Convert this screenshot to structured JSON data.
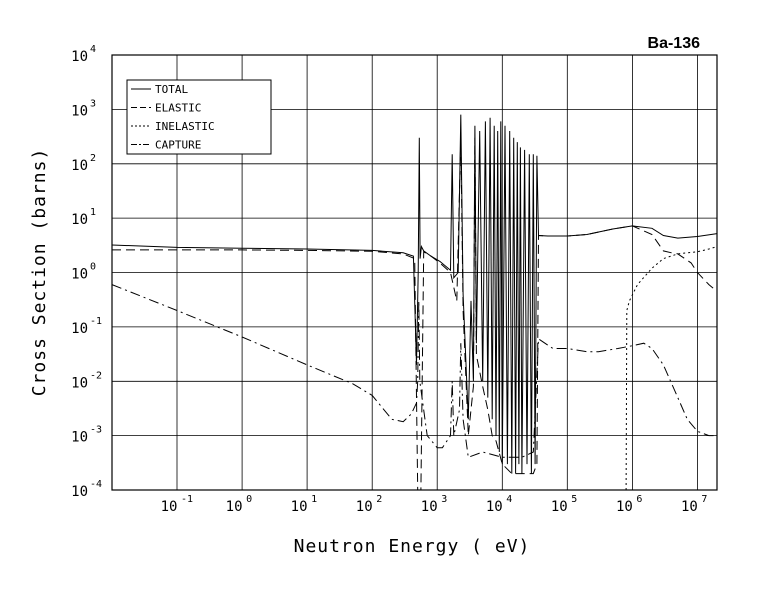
{
  "chart_data": {
    "type": "line",
    "title": "Ba-136",
    "xlabel": "Neutron Energy ( eV)",
    "ylabel": "Cross Section (barns)",
    "x_scale": "log",
    "y_scale": "log",
    "xlim": [
      0.01,
      20000000
    ],
    "ylim": [
      0.0001,
      10000
    ],
    "x_ticks": [
      0.1,
      1,
      10,
      100,
      1000,
      10000,
      100000,
      1000000,
      10000000
    ],
    "x_tick_labels": [
      {
        "base": "10",
        "exp": "-1"
      },
      {
        "base": "10",
        "exp": "0"
      },
      {
        "base": "10",
        "exp": "1"
      },
      {
        "base": "10",
        "exp": "2"
      },
      {
        "base": "10",
        "exp": "3"
      },
      {
        "base": "10",
        "exp": "4"
      },
      {
        "base": "10",
        "exp": "5"
      },
      {
        "base": "10",
        "exp": "6"
      },
      {
        "base": "10",
        "exp": "7"
      }
    ],
    "y_ticks": [
      0.0001,
      0.001,
      0.01,
      0.1,
      1,
      10,
      100,
      1000,
      10000
    ],
    "y_tick_labels": [
      {
        "base": "10",
        "exp": "-4"
      },
      {
        "base": "10",
        "exp": "-3"
      },
      {
        "base": "10",
        "exp": "-2"
      },
      {
        "base": "10",
        "exp": "-1"
      },
      {
        "base": "10",
        "exp": "0"
      },
      {
        "base": "10",
        "exp": "1"
      },
      {
        "base": "10",
        "exp": "2"
      },
      {
        "base": "10",
        "exp": "3"
      },
      {
        "base": "10",
        "exp": "4"
      }
    ],
    "grid": true,
    "legend_position": "top-left",
    "series": [
      {
        "name": "TOTAL",
        "dash": "solid",
        "points": [
          [
            0.01,
            3.2
          ],
          [
            0.1,
            2.9
          ],
          [
            1,
            2.8
          ],
          [
            10,
            2.7
          ],
          [
            100,
            2.55
          ],
          [
            300,
            2.3
          ],
          [
            430,
            2.0
          ],
          [
            480,
            0.02
          ],
          [
            510,
            1.0
          ],
          [
            530,
            300
          ],
          [
            545,
            1.8
          ],
          [
            570,
            3.0
          ],
          [
            620,
            2.5
          ],
          [
            800,
            2.0
          ],
          [
            1100,
            1.6
          ],
          [
            1600,
            1.1
          ],
          [
            1700,
            150
          ],
          [
            1800,
            0.8
          ],
          [
            2100,
            1.0
          ],
          [
            2300,
            800
          ],
          [
            2500,
            0.4
          ],
          [
            3000,
            0.002
          ],
          [
            3300,
            0.3
          ],
          [
            3600,
            0.01
          ],
          [
            3800,
            500
          ],
          [
            4000,
            0.05
          ],
          [
            4500,
            400
          ],
          [
            5000,
            0.01
          ],
          [
            5500,
            600
          ],
          [
            6000,
            0.005
          ],
          [
            6500,
            700
          ],
          [
            7000,
            0.002
          ],
          [
            7500,
            500
          ],
          [
            8000,
            0.001
          ],
          [
            8500,
            400
          ],
          [
            9000,
            0.0005
          ],
          [
            9500,
            600
          ],
          [
            10000,
            0.0003
          ],
          [
            11000,
            500
          ],
          [
            12000,
            0.0003
          ],
          [
            13000,
            400
          ],
          [
            14000,
            0.0002
          ],
          [
            15000,
            300
          ],
          [
            16000,
            0.0002
          ],
          [
            17000,
            250
          ],
          [
            18000,
            0.0003
          ],
          [
            19000,
            200
          ],
          [
            20000,
            0.0002
          ],
          [
            22000,
            180
          ],
          [
            24000,
            0.0003
          ],
          [
            26000,
            150
          ],
          [
            28000,
            0.0002
          ],
          [
            30000,
            150
          ],
          [
            32000,
            0.0003
          ],
          [
            34000,
            140
          ],
          [
            36000,
            4.8
          ],
          [
            50000,
            4.7
          ],
          [
            100000,
            4.7
          ],
          [
            200000,
            5.0
          ],
          [
            500000,
            6.3
          ],
          [
            1000000,
            7.2
          ],
          [
            2000000,
            6.5
          ],
          [
            3000000,
            4.8
          ],
          [
            5000000,
            4.3
          ],
          [
            10000000,
            4.6
          ],
          [
            20000000,
            5.2
          ]
        ]
      },
      {
        "name": "ELASTIC",
        "dash": "dashed",
        "points": [
          [
            0.01,
            2.6
          ],
          [
            0.1,
            2.6
          ],
          [
            1,
            2.6
          ],
          [
            10,
            2.55
          ],
          [
            100,
            2.45
          ],
          [
            300,
            2.2
          ],
          [
            450,
            1.8
          ],
          [
            500,
            0.0001
          ],
          [
            560,
            0.0001
          ],
          [
            620,
            2.4
          ],
          [
            800,
            2.0
          ],
          [
            1100,
            1.5
          ],
          [
            1600,
            1.0
          ],
          [
            2000,
            0.3
          ],
          [
            2300,
            300
          ],
          [
            2500,
            0.2
          ],
          [
            3000,
            0.001
          ],
          [
            3600,
            0.008
          ],
          [
            3800,
            300
          ],
          [
            4000,
            0.03
          ],
          [
            5000,
            0.008
          ],
          [
            6000,
            0.003
          ],
          [
            7000,
            0.001
          ],
          [
            8000,
            0.0008
          ],
          [
            10000,
            0.0003
          ],
          [
            14000,
            0.0002
          ],
          [
            20000,
            0.0002
          ],
          [
            30000,
            0.0002
          ],
          [
            34000,
            0.0003
          ],
          [
            36000,
            4.8
          ],
          [
            50000,
            4.7
          ],
          [
            100000,
            4.7
          ],
          [
            200000,
            5.0
          ],
          [
            500000,
            6.3
          ],
          [
            1000000,
            7.2
          ],
          [
            2000000,
            5.0
          ],
          [
            3000000,
            2.5
          ],
          [
            4000000,
            2.3
          ],
          [
            5000000,
            2.2
          ],
          [
            8000000,
            1.5
          ],
          [
            10000000,
            1.0
          ],
          [
            15000000,
            0.6
          ],
          [
            20000000,
            0.45
          ]
        ]
      },
      {
        "name": "INELASTIC",
        "dash": "dotted",
        "points": [
          [
            800000,
            0.0001
          ],
          [
            820000,
            0.2
          ],
          [
            900000,
            0.3
          ],
          [
            1200000,
            0.6
          ],
          [
            2000000,
            1.2
          ],
          [
            3000000,
            1.8
          ],
          [
            5000000,
            2.2
          ],
          [
            7000000,
            2.3
          ],
          [
            10000000,
            2.4
          ],
          [
            15000000,
            2.7
          ],
          [
            20000000,
            3.0
          ]
        ]
      },
      {
        "name": "CAPTURE",
        "dash": "dashdot",
        "points": [
          [
            0.01,
            0.6
          ],
          [
            0.1,
            0.2
          ],
          [
            1,
            0.065
          ],
          [
            10,
            0.02
          ],
          [
            50,
            0.009
          ],
          [
            100,
            0.0055
          ],
          [
            200,
            0.002
          ],
          [
            300,
            0.0018
          ],
          [
            400,
            0.0025
          ],
          [
            480,
            0.004
          ],
          [
            500,
            0.01
          ],
          [
            520,
            0.3
          ],
          [
            540,
            0.01
          ],
          [
            700,
            0.001
          ],
          [
            1000,
            0.0006
          ],
          [
            1200,
            0.0006
          ],
          [
            1600,
            0.001
          ],
          [
            1700,
            0.01
          ],
          [
            1800,
            0.001
          ],
          [
            2200,
            0.003
          ],
          [
            2300,
            0.05
          ],
          [
            2500,
            0.002
          ],
          [
            3000,
            0.0004
          ],
          [
            5000,
            0.0005
          ],
          [
            10000,
            0.0004
          ],
          [
            20000,
            0.0004
          ],
          [
            30000,
            0.0005
          ],
          [
            36000,
            0.06
          ],
          [
            60000,
            0.04
          ],
          [
            100000,
            0.04
          ],
          [
            200000,
            0.035
          ],
          [
            300000,
            0.035
          ],
          [
            600000,
            0.04
          ],
          [
            1000000,
            0.045
          ],
          [
            1500000,
            0.05
          ],
          [
            2000000,
            0.04
          ],
          [
            3000000,
            0.02
          ],
          [
            5000000,
            0.005
          ],
          [
            7000000,
            0.002
          ],
          [
            10000000,
            0.0012
          ],
          [
            15000000,
            0.001
          ],
          [
            20000000,
            0.001
          ]
        ]
      }
    ]
  }
}
